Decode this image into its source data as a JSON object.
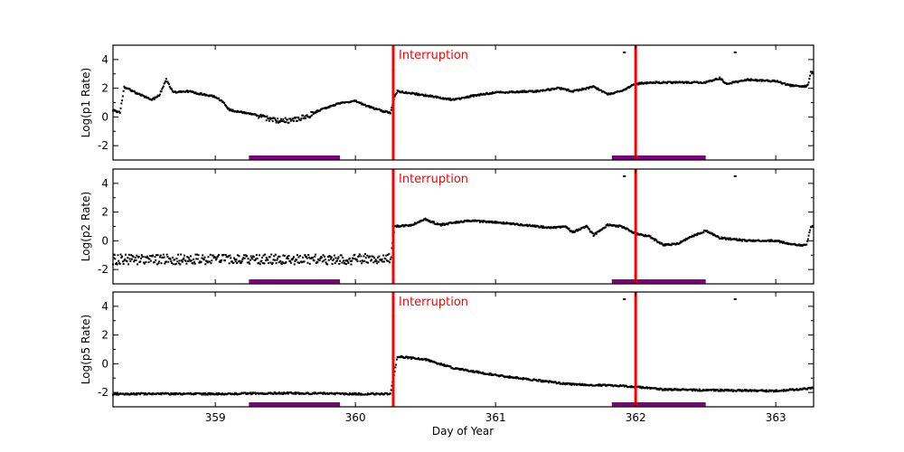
{
  "chart_data": {
    "type": "scatter",
    "xlabel": "Day of Year",
    "xlim": [
      358.27,
      363.27
    ],
    "xticks": [
      359,
      360,
      361,
      362,
      363
    ],
    "marker_color": "#000000",
    "interruption_color": "#ff0000",
    "bar_color": "#800080",
    "interruptions": [
      360.27,
      362.0
    ],
    "interruption_label": "Interruption",
    "bars": [
      [
        359.24,
        359.89
      ],
      [
        361.83,
        362.5
      ]
    ],
    "panels": [
      {
        "ylabel": "Log(p1 Rate)",
        "ylim": [
          -3,
          5
        ],
        "yticks": [
          -2,
          0,
          2,
          4
        ],
        "trend": [
          [
            358.27,
            0.5
          ],
          [
            358.32,
            0.3
          ],
          [
            358.35,
            2.1
          ],
          [
            358.45,
            1.6
          ],
          [
            358.55,
            1.2
          ],
          [
            358.6,
            1.5
          ],
          [
            358.65,
            2.6
          ],
          [
            358.7,
            1.7
          ],
          [
            358.8,
            1.8
          ],
          [
            358.9,
            1.6
          ],
          [
            359.0,
            1.4
          ],
          [
            359.05,
            1.1
          ],
          [
            359.1,
            0.5
          ],
          [
            359.3,
            0.1
          ],
          [
            359.45,
            -0.3
          ],
          [
            359.55,
            -0.2
          ],
          [
            359.65,
            0.0
          ],
          [
            359.75,
            0.5
          ],
          [
            359.9,
            1.0
          ],
          [
            360.0,
            1.1
          ],
          [
            360.1,
            0.7
          ],
          [
            360.2,
            0.4
          ],
          [
            360.25,
            0.3
          ],
          [
            360.28,
            1.4
          ],
          [
            360.3,
            1.8
          ],
          [
            360.5,
            1.5
          ],
          [
            360.7,
            1.2
          ],
          [
            360.85,
            1.5
          ],
          [
            361.0,
            1.7
          ],
          [
            361.3,
            1.8
          ],
          [
            361.45,
            2.0
          ],
          [
            361.55,
            1.8
          ],
          [
            361.7,
            2.1
          ],
          [
            361.8,
            1.6
          ],
          [
            361.9,
            1.8
          ],
          [
            362.0,
            2.3
          ],
          [
            362.1,
            2.4
          ],
          [
            362.5,
            2.4
          ],
          [
            362.6,
            2.7
          ],
          [
            362.65,
            2.3
          ],
          [
            362.8,
            2.6
          ],
          [
            363.0,
            2.5
          ],
          [
            363.1,
            2.2
          ],
          [
            363.2,
            2.1
          ],
          [
            363.23,
            2.2
          ],
          [
            363.25,
            3.1
          ],
          [
            363.27,
            3.1
          ]
        ],
        "outliers": [
          [
            361.92,
            4.5
          ],
          [
            362.71,
            4.5
          ]
        ]
      },
      {
        "ylabel": "Log(p2 Rate)",
        "ylim": [
          -3,
          5
        ],
        "yticks": [
          -2,
          0,
          2,
          4
        ],
        "trend": [
          [
            358.27,
            -1.3
          ],
          [
            359.0,
            -1.3
          ],
          [
            359.5,
            -1.3
          ],
          [
            360.0,
            -1.3
          ],
          [
            360.25,
            -1.2
          ],
          [
            360.28,
            1.0
          ],
          [
            360.4,
            1.1
          ],
          [
            360.5,
            1.5
          ],
          [
            360.6,
            1.1
          ],
          [
            360.8,
            1.4
          ],
          [
            361.0,
            1.3
          ],
          [
            361.2,
            1.1
          ],
          [
            361.4,
            0.9
          ],
          [
            361.5,
            1.0
          ],
          [
            361.55,
            0.6
          ],
          [
            361.65,
            1.0
          ],
          [
            361.7,
            0.4
          ],
          [
            361.8,
            1.1
          ],
          [
            361.9,
            1.0
          ],
          [
            362.0,
            0.5
          ],
          [
            362.1,
            0.3
          ],
          [
            362.2,
            -0.3
          ],
          [
            362.3,
            -0.2
          ],
          [
            362.4,
            0.3
          ],
          [
            362.5,
            0.7
          ],
          [
            362.6,
            0.2
          ],
          [
            362.8,
            0.0
          ],
          [
            363.0,
            0.0
          ],
          [
            363.15,
            -0.3
          ],
          [
            363.22,
            -0.3
          ],
          [
            363.25,
            1.0
          ],
          [
            363.27,
            1.0
          ]
        ],
        "outliers": [
          [
            361.92,
            4.5
          ],
          [
            362.71,
            4.5
          ]
        ]
      },
      {
        "ylabel": "Log(p5 Rate)",
        "ylim": [
          -3,
          5
        ],
        "yticks": [
          -2,
          0,
          2,
          4
        ],
        "trend": [
          [
            358.27,
            -2.1
          ],
          [
            359.0,
            -2.1
          ],
          [
            359.5,
            -2.05
          ],
          [
            360.0,
            -2.1
          ],
          [
            360.25,
            -2.1
          ],
          [
            360.3,
            0.5
          ],
          [
            360.5,
            0.3
          ],
          [
            360.7,
            -0.3
          ],
          [
            361.0,
            -0.8
          ],
          [
            361.5,
            -1.4
          ],
          [
            362.0,
            -1.6
          ],
          [
            362.2,
            -1.8
          ],
          [
            363.0,
            -1.9
          ],
          [
            363.27,
            -1.7
          ]
        ],
        "outliers": [
          [
            361.92,
            4.5
          ],
          [
            362.71,
            4.5
          ]
        ]
      }
    ]
  }
}
